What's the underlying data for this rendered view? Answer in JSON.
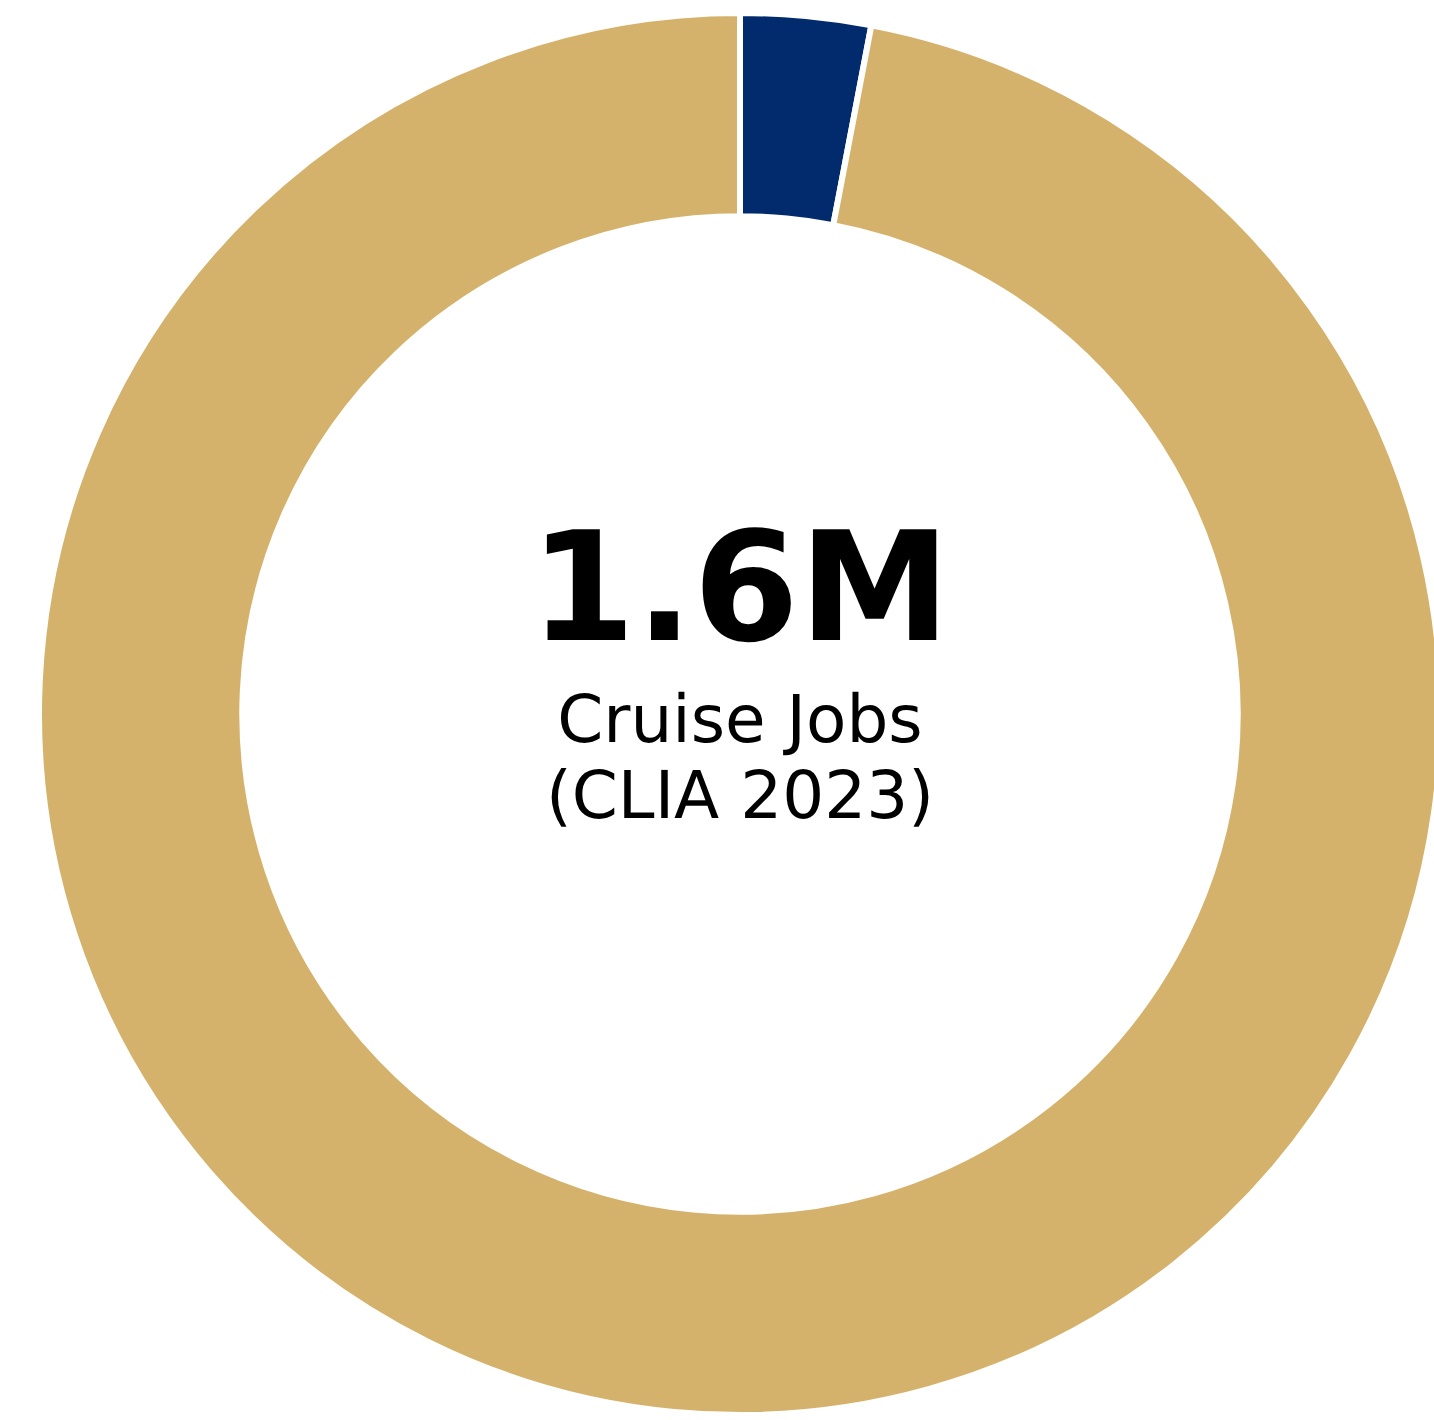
{
  "chart_data": {
    "type": "donut",
    "categories": [
      null,
      null
    ],
    "values": [
      3,
      97
    ],
    "colors": [
      "#022b6e",
      "#d5b26b"
    ],
    "annotations": [
      "1.6M",
      "Cruise Jobs",
      "(CLIA 2023)"
    ],
    "legend": false
  }
}
